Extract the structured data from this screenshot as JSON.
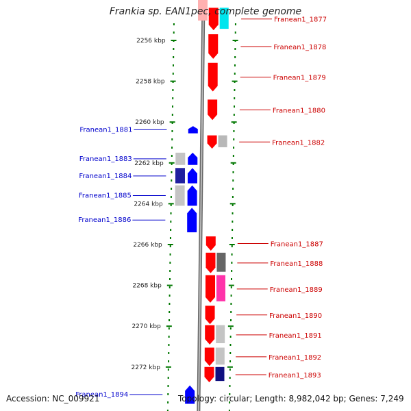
{
  "title": "Frankia sp. EAN1pec, complete genome",
  "footer": {
    "accession": "Accession: NC_009921",
    "summary": "Topology: circular; Length: 8,982,042 bp; Genes: 7,249"
  },
  "colors": {
    "forward": "#ff0000",
    "reverse": "#0000ff",
    "tick": "#007700",
    "backbone": "#888888",
    "label_forward": "#cc0000",
    "label_reverse": "#0000cc"
  },
  "ruler": [
    "2256 kbp",
    "2258 kbp",
    "2260 kbp",
    "2262 kbp",
    "2264 kbp",
    "2266 kbp",
    "2268 kbp",
    "2270 kbp",
    "2272 kbp"
  ],
  "genes": [
    {
      "name": "Franean1_1877",
      "strand": "+",
      "start": 2254.4,
      "end": 2255.5,
      "partner": "#00e5ee"
    },
    {
      "name": "Franean1_1878",
      "strand": "+",
      "start": 2255.7,
      "end": 2256.9,
      "partner": null
    },
    {
      "name": "Franean1_1879",
      "strand": "+",
      "start": 2257.1,
      "end": 2258.5,
      "partner": null
    },
    {
      "name": "Franean1_1880",
      "strand": "+",
      "start": 2258.9,
      "end": 2259.9,
      "partner": null
    },
    {
      "name": "Franean1_1881",
      "strand": "-",
      "start": 2260.2,
      "end": 2260.55,
      "partner": null
    },
    {
      "name": "Franean1_1882",
      "strand": "+",
      "start": 2260.65,
      "end": 2261.3,
      "partner": "#b8b8b8"
    },
    {
      "name": "Franean1_1883",
      "strand": "-",
      "start": 2261.5,
      "end": 2262.1,
      "partner": "#c4c4c4"
    },
    {
      "name": "Franean1_1884",
      "strand": "-",
      "start": 2262.25,
      "end": 2263.0,
      "partner": "#2020a0"
    },
    {
      "name": "Franean1_1885",
      "strand": "-",
      "start": 2263.1,
      "end": 2264.1,
      "partner": "#c4c4c4"
    },
    {
      "name": "Franean1_1886",
      "strand": "-",
      "start": 2264.2,
      "end": 2265.4,
      "partner": null
    },
    {
      "name": "Franean1_1887",
      "strand": "+",
      "start": 2265.6,
      "end": 2266.3,
      "partner": null
    },
    {
      "name": "Franean1_1888",
      "strand": "+",
      "start": 2266.4,
      "end": 2267.4,
      "partner": "#666666"
    },
    {
      "name": "Franean1_1889",
      "strand": "+",
      "start": 2267.5,
      "end": 2268.85,
      "partner": "#ff33aa"
    },
    {
      "name": "Franean1_1890",
      "strand": "+",
      "start": 2269.0,
      "end": 2269.9,
      "partner": null
    },
    {
      "name": "Franean1_1891",
      "strand": "+",
      "start": 2269.95,
      "end": 2270.9,
      "partner": "#c4c4c4"
    },
    {
      "name": "Franean1_1892",
      "strand": "+",
      "start": 2271.05,
      "end": 2271.95,
      "partner": "#c4c4c4"
    },
    {
      "name": "Franean1_1893",
      "strand": "+",
      "start": 2272.0,
      "end": 2272.75,
      "partner": "#101080"
    },
    {
      "name": "Franean1_1894",
      "strand": "-",
      "start": 2272.9,
      "end": 2273.8,
      "partner": null
    }
  ]
}
